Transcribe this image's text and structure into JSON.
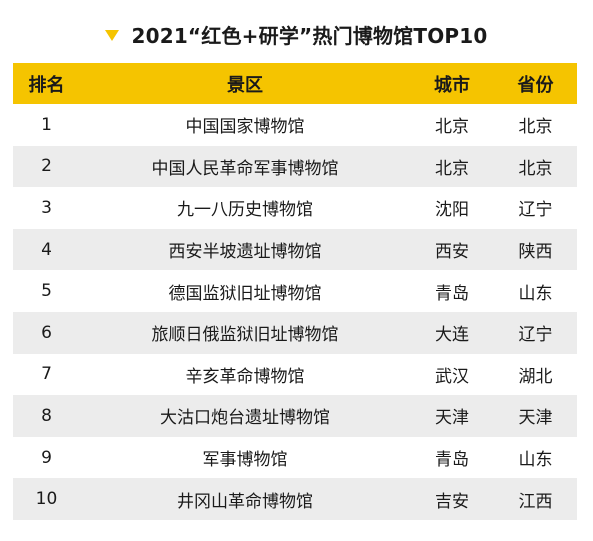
{
  "header": {
    "title": "2021“红色+研学”热门博物馆TOP10",
    "marker_icon": "triangle-down-icon",
    "accent_color": "#f5c400"
  },
  "table": {
    "columns": [
      "排名",
      "景区",
      "城市",
      "省份"
    ],
    "header_bg": "#f5c400",
    "stripe_bg": "#ececec",
    "rows": [
      {
        "rank": "1",
        "spot": "中国国家博物馆",
        "city": "北京",
        "province": "北京"
      },
      {
        "rank": "2",
        "spot": "中国人民革命军事博物馆",
        "city": "北京",
        "province": "北京"
      },
      {
        "rank": "3",
        "spot": "九一八历史博物馆",
        "city": "沈阳",
        "province": "辽宁"
      },
      {
        "rank": "4",
        "spot": "西安半坡遗址博物馆",
        "city": "西安",
        "province": "陕西"
      },
      {
        "rank": "5",
        "spot": "德国监狱旧址博物馆",
        "city": "青岛",
        "province": "山东"
      },
      {
        "rank": "6",
        "spot": "旅顺日俄监狱旧址博物馆",
        "city": "大连",
        "province": "辽宁"
      },
      {
        "rank": "7",
        "spot": "辛亥革命博物馆",
        "city": "武汉",
        "province": "湖北"
      },
      {
        "rank": "8",
        "spot": "大沽口炮台遗址博物馆",
        "city": "天津",
        "province": "天津"
      },
      {
        "rank": "9",
        "spot": "军事博物馆",
        "city": "青岛",
        "province": "山东"
      },
      {
        "rank": "10",
        "spot": "井冈山革命博物馆",
        "city": "吉安",
        "province": "江西"
      }
    ]
  }
}
